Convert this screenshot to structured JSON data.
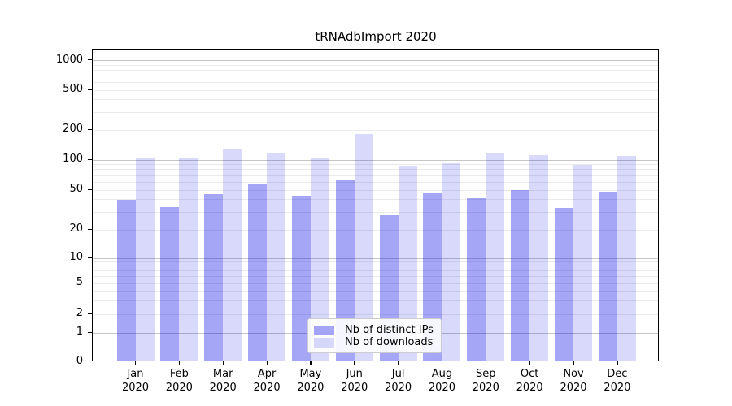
{
  "page": {
    "background": "#ffffff"
  },
  "chart_data": {
    "type": "bar",
    "title": "tRNAdbImport 2020",
    "categories": [
      "Jan 2020",
      "Feb 2020",
      "Mar 2020",
      "Apr 2020",
      "May 2020",
      "Jun 2020",
      "Jul 2020",
      "Aug 2020",
      "Sep 2020",
      "Oct 2020",
      "Nov 2020",
      "Dec 2020"
    ],
    "series": [
      {
        "name": "Nb of distinct IPs",
        "color": "rgba(0,0,230,0.35)",
        "values": [
          39,
          33,
          44,
          56,
          43,
          61,
          27,
          45,
          40,
          49,
          32,
          46
        ]
      },
      {
        "name": "Nb of downloads",
        "color": "rgba(0,0,230,0.15)",
        "values": [
          103,
          102,
          126,
          116,
          103,
          177,
          83,
          91,
          115,
          108,
          87,
          106
        ]
      }
    ],
    "xlabel": "",
    "ylabel": "",
    "yscale": "symlog",
    "yticks": [
      0,
      1,
      2,
      5,
      10,
      20,
      50,
      100,
      200,
      500,
      1000
    ],
    "ylim": [
      0,
      1300
    ],
    "grid": "horizontal major and log-minor gridlines",
    "legend_position": "lower center"
  },
  "colors": {
    "major_grid": "#c6c6c6",
    "minor_grid": "#eaeaea",
    "axis": "#000000",
    "text": "#000000",
    "legend_border": "#cccccc"
  }
}
